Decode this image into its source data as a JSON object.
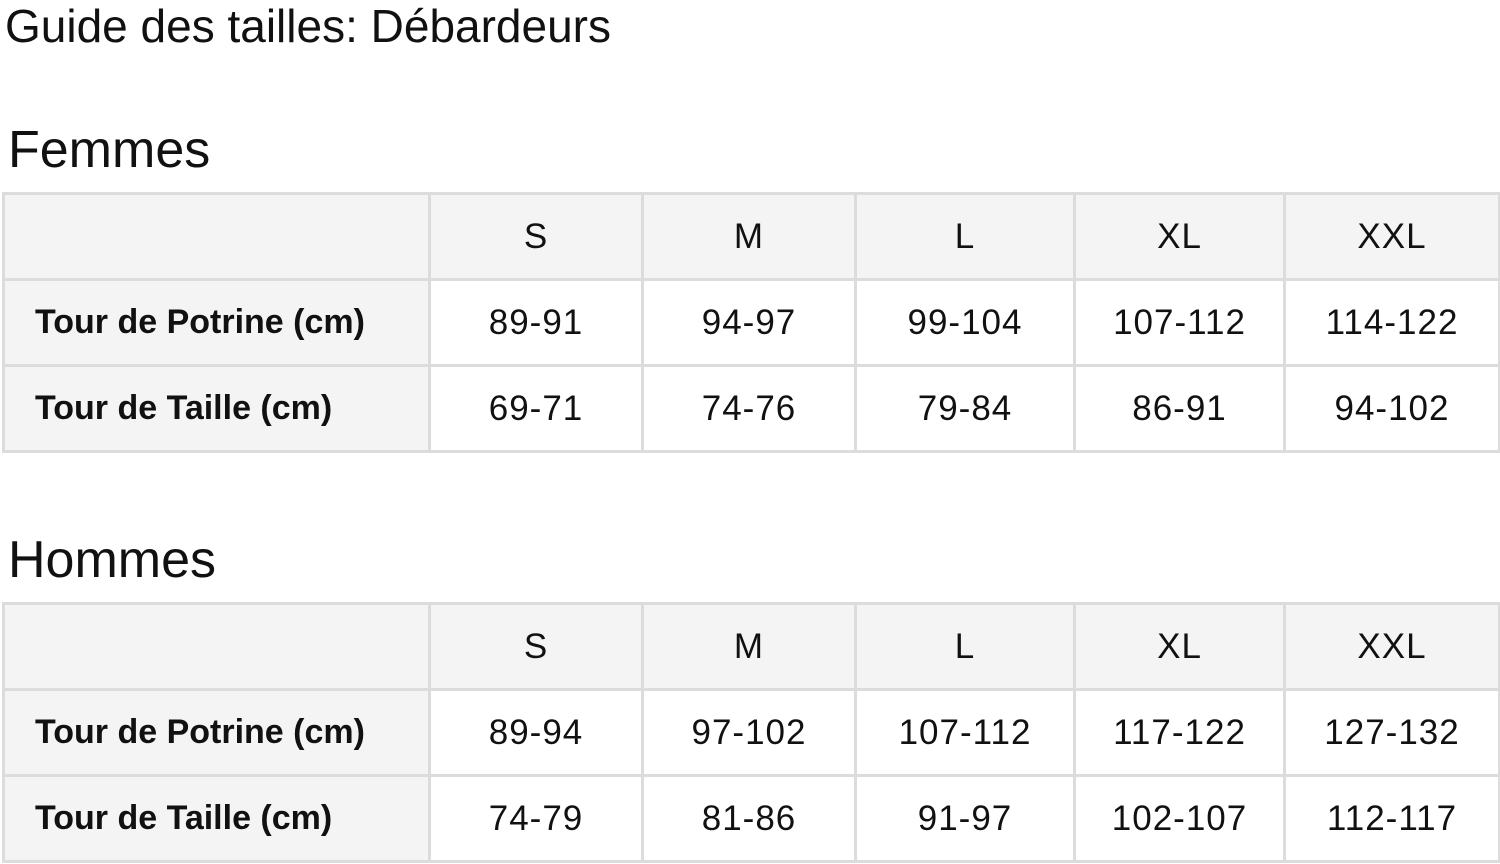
{
  "title": "Guide des tailles: Débardeurs",
  "tables": [
    {
      "heading": "Femmes",
      "sizes": [
        "S",
        "M",
        "L",
        "XL",
        "XXL"
      ],
      "rows": [
        {
          "label": "Tour de Potrine (cm)",
          "values": [
            "89-91",
            "94-97",
            "99-104",
            "107-112",
            "114-122"
          ]
        },
        {
          "label": "Tour de Taille (cm)",
          "values": [
            "69-71",
            "74-76",
            "79-84",
            "86-91",
            "94-102"
          ]
        }
      ]
    },
    {
      "heading": "Hommes",
      "sizes": [
        "S",
        "M",
        "L",
        "XL",
        "XXL"
      ],
      "rows": [
        {
          "label": "Tour de Potrine (cm)",
          "values": [
            "89-94",
            "97-102",
            "107-112",
            "117-122",
            "127-132"
          ]
        },
        {
          "label": "Tour de Taille (cm)",
          "values": [
            "74-79",
            "81-86",
            "91-97",
            "102-107",
            "112-117"
          ]
        }
      ]
    }
  ]
}
